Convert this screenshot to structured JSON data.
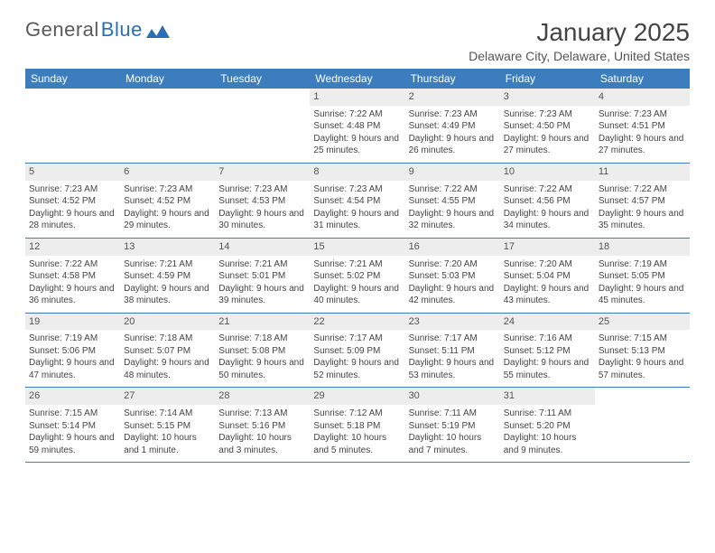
{
  "brand": {
    "part1": "General",
    "part2": "Blue"
  },
  "title": "January 2025",
  "subtitle": "Delaware City, Delaware, United States",
  "colors": {
    "header_bg": "#3c7ebd",
    "header_text": "#ffffff",
    "daynum_bg": "#ededed",
    "rule": "#3c7ebd",
    "logo_gray": "#5a5a5a",
    "logo_blue": "#2a6fb5"
  },
  "day_labels": [
    "Sunday",
    "Monday",
    "Tuesday",
    "Wednesday",
    "Thursday",
    "Friday",
    "Saturday"
  ],
  "weeks": [
    [
      {
        "n": "",
        "sr": "",
        "ss": "",
        "dl": ""
      },
      {
        "n": "",
        "sr": "",
        "ss": "",
        "dl": ""
      },
      {
        "n": "",
        "sr": "",
        "ss": "",
        "dl": ""
      },
      {
        "n": "1",
        "sr": "Sunrise: 7:22 AM",
        "ss": "Sunset: 4:48 PM",
        "dl": "Daylight: 9 hours and 25 minutes."
      },
      {
        "n": "2",
        "sr": "Sunrise: 7:23 AM",
        "ss": "Sunset: 4:49 PM",
        "dl": "Daylight: 9 hours and 26 minutes."
      },
      {
        "n": "3",
        "sr": "Sunrise: 7:23 AM",
        "ss": "Sunset: 4:50 PM",
        "dl": "Daylight: 9 hours and 27 minutes."
      },
      {
        "n": "4",
        "sr": "Sunrise: 7:23 AM",
        "ss": "Sunset: 4:51 PM",
        "dl": "Daylight: 9 hours and 27 minutes."
      }
    ],
    [
      {
        "n": "5",
        "sr": "Sunrise: 7:23 AM",
        "ss": "Sunset: 4:52 PM",
        "dl": "Daylight: 9 hours and 28 minutes."
      },
      {
        "n": "6",
        "sr": "Sunrise: 7:23 AM",
        "ss": "Sunset: 4:52 PM",
        "dl": "Daylight: 9 hours and 29 minutes."
      },
      {
        "n": "7",
        "sr": "Sunrise: 7:23 AM",
        "ss": "Sunset: 4:53 PM",
        "dl": "Daylight: 9 hours and 30 minutes."
      },
      {
        "n": "8",
        "sr": "Sunrise: 7:23 AM",
        "ss": "Sunset: 4:54 PM",
        "dl": "Daylight: 9 hours and 31 minutes."
      },
      {
        "n": "9",
        "sr": "Sunrise: 7:22 AM",
        "ss": "Sunset: 4:55 PM",
        "dl": "Daylight: 9 hours and 32 minutes."
      },
      {
        "n": "10",
        "sr": "Sunrise: 7:22 AM",
        "ss": "Sunset: 4:56 PM",
        "dl": "Daylight: 9 hours and 34 minutes."
      },
      {
        "n": "11",
        "sr": "Sunrise: 7:22 AM",
        "ss": "Sunset: 4:57 PM",
        "dl": "Daylight: 9 hours and 35 minutes."
      }
    ],
    [
      {
        "n": "12",
        "sr": "Sunrise: 7:22 AM",
        "ss": "Sunset: 4:58 PM",
        "dl": "Daylight: 9 hours and 36 minutes."
      },
      {
        "n": "13",
        "sr": "Sunrise: 7:21 AM",
        "ss": "Sunset: 4:59 PM",
        "dl": "Daylight: 9 hours and 38 minutes."
      },
      {
        "n": "14",
        "sr": "Sunrise: 7:21 AM",
        "ss": "Sunset: 5:01 PM",
        "dl": "Daylight: 9 hours and 39 minutes."
      },
      {
        "n": "15",
        "sr": "Sunrise: 7:21 AM",
        "ss": "Sunset: 5:02 PM",
        "dl": "Daylight: 9 hours and 40 minutes."
      },
      {
        "n": "16",
        "sr": "Sunrise: 7:20 AM",
        "ss": "Sunset: 5:03 PM",
        "dl": "Daylight: 9 hours and 42 minutes."
      },
      {
        "n": "17",
        "sr": "Sunrise: 7:20 AM",
        "ss": "Sunset: 5:04 PM",
        "dl": "Daylight: 9 hours and 43 minutes."
      },
      {
        "n": "18",
        "sr": "Sunrise: 7:19 AM",
        "ss": "Sunset: 5:05 PM",
        "dl": "Daylight: 9 hours and 45 minutes."
      }
    ],
    [
      {
        "n": "19",
        "sr": "Sunrise: 7:19 AM",
        "ss": "Sunset: 5:06 PM",
        "dl": "Daylight: 9 hours and 47 minutes."
      },
      {
        "n": "20",
        "sr": "Sunrise: 7:18 AM",
        "ss": "Sunset: 5:07 PM",
        "dl": "Daylight: 9 hours and 48 minutes."
      },
      {
        "n": "21",
        "sr": "Sunrise: 7:18 AM",
        "ss": "Sunset: 5:08 PM",
        "dl": "Daylight: 9 hours and 50 minutes."
      },
      {
        "n": "22",
        "sr": "Sunrise: 7:17 AM",
        "ss": "Sunset: 5:09 PM",
        "dl": "Daylight: 9 hours and 52 minutes."
      },
      {
        "n": "23",
        "sr": "Sunrise: 7:17 AM",
        "ss": "Sunset: 5:11 PM",
        "dl": "Daylight: 9 hours and 53 minutes."
      },
      {
        "n": "24",
        "sr": "Sunrise: 7:16 AM",
        "ss": "Sunset: 5:12 PM",
        "dl": "Daylight: 9 hours and 55 minutes."
      },
      {
        "n": "25",
        "sr": "Sunrise: 7:15 AM",
        "ss": "Sunset: 5:13 PM",
        "dl": "Daylight: 9 hours and 57 minutes."
      }
    ],
    [
      {
        "n": "26",
        "sr": "Sunrise: 7:15 AM",
        "ss": "Sunset: 5:14 PM",
        "dl": "Daylight: 9 hours and 59 minutes."
      },
      {
        "n": "27",
        "sr": "Sunrise: 7:14 AM",
        "ss": "Sunset: 5:15 PM",
        "dl": "Daylight: 10 hours and 1 minute."
      },
      {
        "n": "28",
        "sr": "Sunrise: 7:13 AM",
        "ss": "Sunset: 5:16 PM",
        "dl": "Daylight: 10 hours and 3 minutes."
      },
      {
        "n": "29",
        "sr": "Sunrise: 7:12 AM",
        "ss": "Sunset: 5:18 PM",
        "dl": "Daylight: 10 hours and 5 minutes."
      },
      {
        "n": "30",
        "sr": "Sunrise: 7:11 AM",
        "ss": "Sunset: 5:19 PM",
        "dl": "Daylight: 10 hours and 7 minutes."
      },
      {
        "n": "31",
        "sr": "Sunrise: 7:11 AM",
        "ss": "Sunset: 5:20 PM",
        "dl": "Daylight: 10 hours and 9 minutes."
      },
      {
        "n": "",
        "sr": "",
        "ss": "",
        "dl": ""
      }
    ]
  ]
}
